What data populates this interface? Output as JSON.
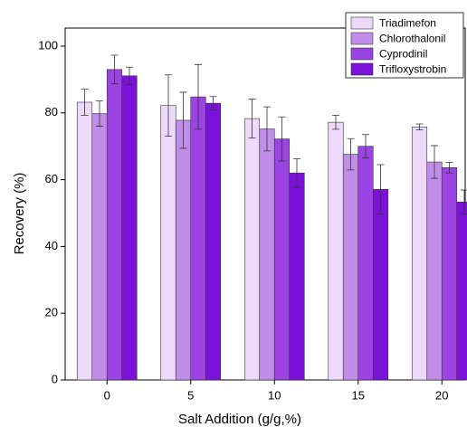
{
  "chart_data": {
    "type": "bar",
    "x_label": "Salt Addition (g/g,%)",
    "y_label": "Recovery (%)",
    "categories": [
      "0",
      "5",
      "10",
      "15",
      "20"
    ],
    "series": [
      {
        "name": "Triadimefon",
        "color": "#eed9fb",
        "values": [
          83.2,
          82.2,
          78.3,
          77.2,
          75.8
        ],
        "errors": [
          3.9,
          9.2,
          5.8,
          2.1,
          0.9
        ]
      },
      {
        "name": "Chlorothalonil",
        "color": "#c08ee8",
        "values": [
          79.8,
          77.8,
          75.2,
          67.6,
          65.3
        ],
        "errors": [
          3.8,
          8.4,
          6.6,
          4.7,
          4.9
        ]
      },
      {
        "name": "Cyprodinil",
        "color": "#9b44e3",
        "values": [
          93,
          84.8,
          72.2,
          70,
          63.6
        ],
        "errors": [
          4.3,
          9.7,
          6.6,
          3.5,
          1.6
        ]
      },
      {
        "name": "Trifloxystrobin",
        "color": "#7c12d9",
        "values": [
          91.1,
          82.9,
          62,
          57.1,
          53.3
        ],
        "errors": [
          2.6,
          2,
          4.3,
          7.4,
          3.6
        ]
      }
    ],
    "ylim": [
      0,
      100
    ],
    "yticks": [
      0,
      20,
      40,
      60,
      80,
      100
    ],
    "legend": "upper right"
  }
}
